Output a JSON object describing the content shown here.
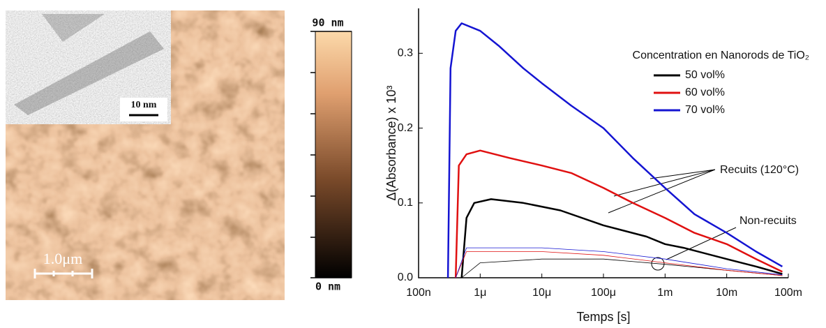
{
  "afm": {
    "scale_bar": "1.0μm",
    "inset_scale": "10 nm",
    "colorbar_max": "90 nm",
    "colorbar_min": "0 nm"
  },
  "chart_data": {
    "type": "line",
    "x_label": "Temps [s]",
    "y_label": "Δ(Absorbance) x 10³",
    "legend_title": "Concentration en Nanorods de TiO₂",
    "x_scale": "log",
    "xlim": [
      1e-07,
      0.1
    ],
    "ylim": [
      0,
      0.36
    ],
    "xticks": [
      {
        "value": 1e-07,
        "label": "100n"
      },
      {
        "value": 1e-06,
        "label": "1μ"
      },
      {
        "value": 1e-05,
        "label": "10μ"
      },
      {
        "value": 0.0001,
        "label": "100μ"
      },
      {
        "value": 0.001,
        "label": "1m"
      },
      {
        "value": 0.01,
        "label": "10m"
      },
      {
        "value": 0.1,
        "label": "100m"
      }
    ],
    "yticks": [
      {
        "value": 0,
        "label": "0.0"
      },
      0.1,
      0.2,
      0.3
    ],
    "annotations": [
      "Recuits (120°C)",
      "Non-recuits"
    ],
    "series": [
      {
        "name": "50 vol%",
        "color": "#000000",
        "x": [
          5e-07,
          6e-07,
          8e-07,
          1.5e-06,
          5e-06,
          2e-05,
          0.0001,
          0.0005,
          0.001,
          0.002,
          0.01,
          0.03,
          0.08
        ],
        "values": [
          0,
          0.08,
          0.1,
          0.105,
          0.1,
          0.09,
          0.07,
          0.055,
          0.045,
          0.04,
          0.025,
          0.015,
          0.005
        ]
      },
      {
        "name": "60 vol%",
        "color": "#e01010",
        "x": [
          4e-07,
          4.5e-07,
          6e-07,
          1e-06,
          3e-06,
          1e-05,
          3e-05,
          0.0001,
          0.0003,
          0.001,
          0.003,
          0.01,
          0.03,
          0.08
        ],
        "values": [
          0,
          0.15,
          0.165,
          0.17,
          0.16,
          0.15,
          0.14,
          0.12,
          0.1,
          0.08,
          0.06,
          0.045,
          0.025,
          0.008
        ]
      },
      {
        "name": "70 vol%",
        "color": "#1414d2",
        "x": [
          3e-07,
          3.3e-07,
          4e-07,
          5e-07,
          1e-06,
          2e-06,
          5e-06,
          1e-05,
          3e-05,
          0.0001,
          0.0003,
          0.001,
          0.003,
          0.01,
          0.03,
          0.08
        ],
        "values": [
          0,
          0.28,
          0.33,
          0.34,
          0.33,
          0.31,
          0.28,
          0.26,
          0.23,
          0.2,
          0.16,
          0.12,
          0.085,
          0.06,
          0.035,
          0.015
        ]
      },
      {
        "color": "#000000",
        "x": [
          5e-07,
          1e-06,
          1e-05,
          0.0001,
          0.001,
          0.01,
          0.08
        ],
        "values": [
          0,
          0.02,
          0.025,
          0.025,
          0.018,
          0.01,
          0.003
        ]
      },
      {
        "color": "#e01010",
        "x": [
          4e-07,
          6e-07,
          1e-06,
          1e-05,
          0.0001,
          0.001,
          0.01,
          0.08
        ],
        "values": [
          0,
          0.035,
          0.035,
          0.035,
          0.03,
          0.02,
          0.01,
          0.003
        ]
      },
      {
        "color": "#1414d2",
        "x": [
          4e-07,
          6e-07,
          1e-06,
          1e-05,
          0.0001,
          0.001,
          0.01,
          0.08
        ],
        "values": [
          0,
          0.04,
          0.04,
          0.04,
          0.035,
          0.025,
          0.012,
          0.004
        ]
      }
    ]
  }
}
